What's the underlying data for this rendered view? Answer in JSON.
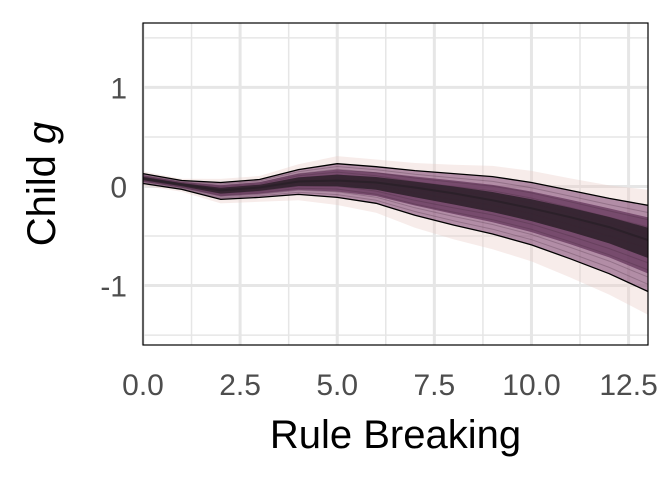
{
  "chart_data": {
    "type": "line",
    "xlabel": "Rule Breaking",
    "ylabel_main": "Child ",
    "ylabel_italic": "g",
    "xlim": [
      0,
      13
    ],
    "ylim": [
      -1.6,
      1.65
    ],
    "x_ticks": [
      0,
      2.5,
      5,
      7.5,
      10,
      12.5
    ],
    "x_tick_labels": [
      "0.0",
      "2.5",
      "5.0",
      "7.5",
      "10.0",
      "12.5"
    ],
    "y_ticks": [
      -1,
      0,
      1
    ],
    "y_tick_labels": [
      "-1",
      "0",
      "1"
    ],
    "grid": true,
    "x": [
      0,
      1,
      2,
      3,
      4,
      5,
      6,
      7,
      8,
      9,
      10,
      11,
      12,
      13
    ],
    "series": [
      {
        "role": "upper_bound",
        "values": [
          0.13,
          0.06,
          0.04,
          0.07,
          0.17,
          0.23,
          0.2,
          0.16,
          0.13,
          0.1,
          0.04,
          -0.04,
          -0.12,
          -0.19
        ]
      },
      {
        "role": "central",
        "values": [
          0.08,
          0.02,
          -0.04,
          -0.01,
          0.05,
          0.06,
          0.04,
          -0.01,
          -0.07,
          -0.14,
          -0.22,
          -0.31,
          -0.41,
          -0.54
        ]
      },
      {
        "role": "lower_bound",
        "values": [
          0.03,
          -0.03,
          -0.13,
          -0.11,
          -0.08,
          -0.11,
          -0.17,
          -0.29,
          -0.39,
          -0.48,
          -0.59,
          -0.73,
          -0.88,
          -1.06
        ]
      }
    ],
    "colors": {
      "panel_background": "#ffffff",
      "grid": "#e6e6e6",
      "envelope_fill": "#7a3f6d",
      "outer_haze": "#e8c8c4",
      "core": "#2b2029",
      "bound_line": "#000000",
      "border": "#000000"
    }
  }
}
